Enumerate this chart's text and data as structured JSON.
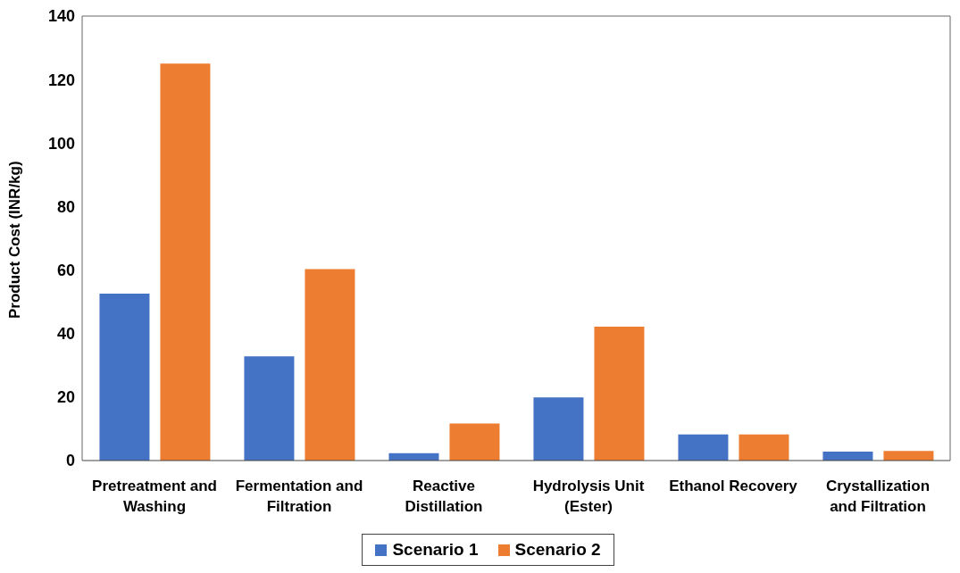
{
  "chart_data": {
    "type": "bar",
    "ylabel": "Product Cost (INR/kg)",
    "categories": [
      "Pretreatment and Washing",
      "Fermentation and Filtration",
      "Reactive Distillation",
      "Hydrolysis Unit (Ester)",
      "Ethanol Recovery",
      "Crystallization and Filtration"
    ],
    "series": [
      {
        "name": "Scenario 1",
        "color": "#4472c4",
        "values": [
          52.6,
          32.8,
          2.3,
          19.9,
          8.2,
          2.8
        ]
      },
      {
        "name": "Scenario 2",
        "color": "#ed7d31",
        "values": [
          125,
          60.3,
          11.7,
          42.2,
          8.2,
          3.0
        ]
      }
    ],
    "ylim": [
      0,
      140
    ],
    "yticks": [
      0,
      20,
      40,
      60,
      80,
      100,
      120,
      140
    ],
    "grid": false,
    "legend": "bottom"
  }
}
